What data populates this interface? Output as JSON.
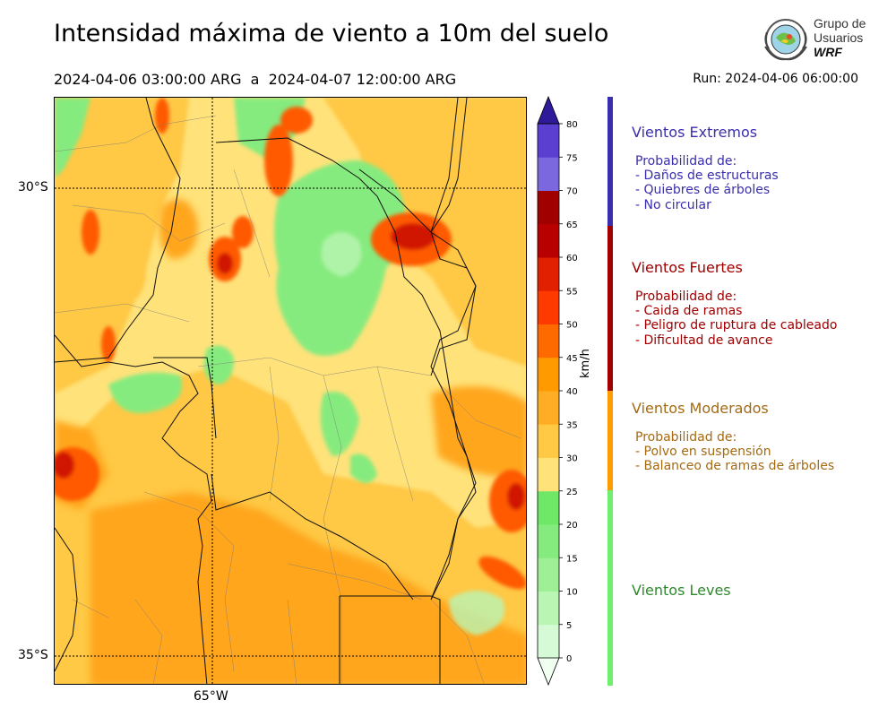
{
  "header": {
    "title": "Intensidad máxima de viento a 10m del suelo",
    "period": "2024-04-06 03:00:00 ARG  a  2024-04-07 12:00:00 ARG",
    "run": "Run: 2024-04-06 06:00:00"
  },
  "logo": {
    "line1": "Grupo de",
    "line2": "Usuarios",
    "line3": "WRF",
    "icon": "globe-emblem-icon"
  },
  "map": {
    "lat_labels": [
      "30°S",
      "35°S"
    ],
    "lon_labels": [
      "65°W"
    ]
  },
  "colorbar": {
    "unit": "km/h",
    "ticks": [
      "0",
      "5",
      "10",
      "15",
      "20",
      "25",
      "30",
      "35",
      "40",
      "45",
      "50",
      "55",
      "60",
      "65",
      "70",
      "75",
      "80"
    ],
    "colors": [
      "#f0fff0",
      "#d6fad6",
      "#baf5b4",
      "#9eef96",
      "#86eb7e",
      "#6ee866",
      "#ffe27a",
      "#ffc845",
      "#ffad25",
      "#ff9a00",
      "#ff6a00",
      "#ff3a00",
      "#e02000",
      "#b80000",
      "#a00000",
      "#7b68de",
      "#5a3fd0",
      "#4028b8",
      "#2f1b9a"
    ]
  },
  "legend": [
    {
      "title": "Vientos Extremos",
      "color": "#3a2eae",
      "lines": [
        "Probabilidad de:",
        "- Daños de estructuras",
        "- Quiebres de árboles",
        "- No circular"
      ]
    },
    {
      "title": "Vientos Fuertes",
      "color": "#a00000",
      "lines": [
        "Probabilidad de:",
        "- Caida de ramas",
        "- Peligro de ruptura de cableado",
        "- Dificultad de avance"
      ]
    },
    {
      "title": "Vientos Moderados",
      "color": "#a56a10",
      "bar_color": "#ff9c00",
      "lines": [
        "Probabilidad de:",
        "- Polvo en suspensión",
        "- Balanceo de ramas de árboles"
      ]
    },
    {
      "title": "Vientos Leves",
      "color": "#2e8a2e",
      "bar_color": "#6ef06e",
      "lines": []
    }
  ]
}
